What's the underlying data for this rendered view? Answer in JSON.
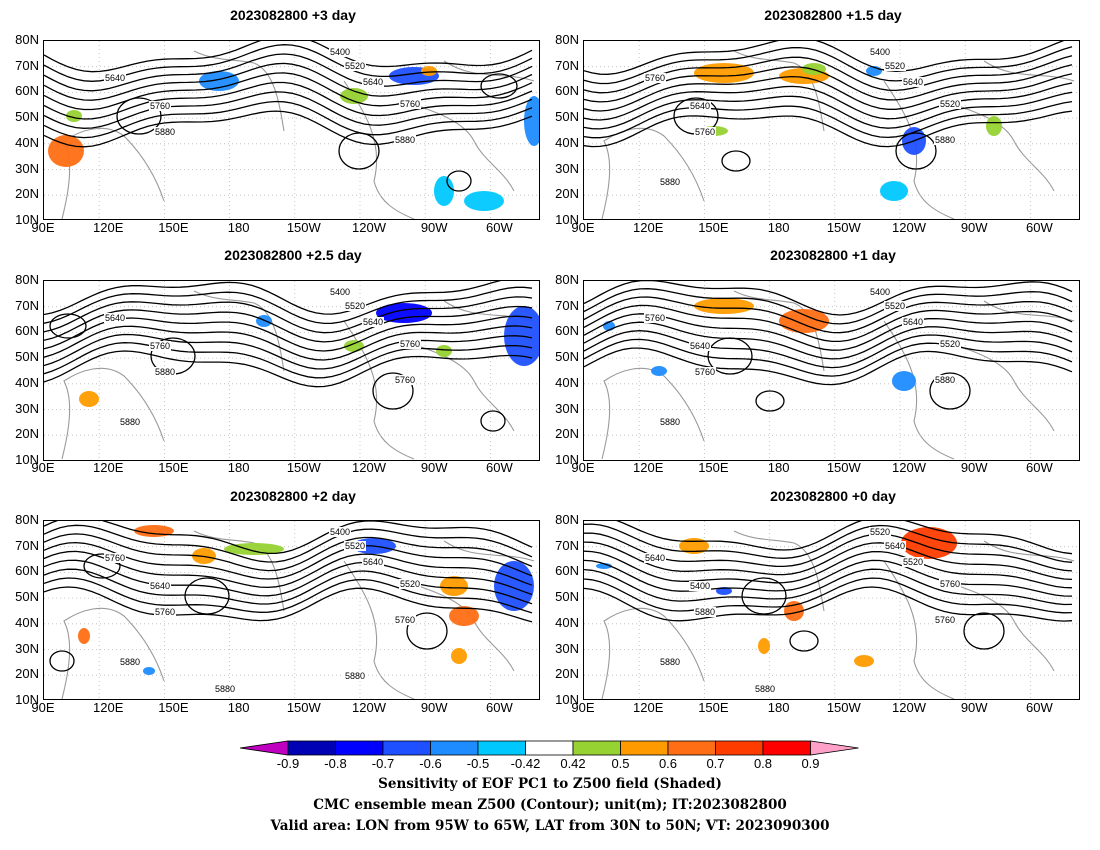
{
  "panels": [
    {
      "title": "2023082800 +3 day",
      "contour_labels": [
        "5400",
        "5520",
        "5640",
        "5640",
        "5760",
        "5760",
        "5880",
        "5880"
      ]
    },
    {
      "title": "2023082800 +1.5 day",
      "contour_labels": [
        "5400",
        "5520",
        "5640",
        "5760",
        "5520",
        "5640",
        "5760",
        "5880",
        "5880"
      ]
    },
    {
      "title": "2023082800 +2.5 day",
      "contour_labels": [
        "5400",
        "5520",
        "5640",
        "5640",
        "5760",
        "5760",
        "5880",
        "5760",
        "5880"
      ]
    },
    {
      "title": "2023082800 +1 day",
      "contour_labels": [
        "5400",
        "5520",
        "5640",
        "5760",
        "5520",
        "5640",
        "5760",
        "5880",
        "5880"
      ]
    },
    {
      "title": "2023082800 +2 day",
      "contour_labels": [
        "5400",
        "5520",
        "5640",
        "5760",
        "5520",
        "5640",
        "5760",
        "5760",
        "5880",
        "5880",
        "5880"
      ]
    },
    {
      "title": "2023082800 +0 day",
      "contour_labels": [
        "5520",
        "5640",
        "5520",
        "5640",
        "5760",
        "5400",
        "5880",
        "5760",
        "5880",
        "5880"
      ]
    }
  ],
  "lat_labels": [
    "80N",
    "70N",
    "60N",
    "50N",
    "40N",
    "30N",
    "20N",
    "10N"
  ],
  "lon_labels": [
    "90E",
    "120E",
    "150E",
    "180",
    "150W",
    "120W",
    "90W",
    "60W"
  ],
  "colorbar": {
    "labels": [
      "-0.9",
      "-0.8",
      "-0.7",
      "-0.6",
      "-0.5",
      "-0.42",
      "0.42",
      "0.5",
      "0.6",
      "0.7",
      "0.8",
      "0.9"
    ],
    "colors": [
      "#c000c0",
      "#0000b4",
      "#0000ff",
      "#1e50ff",
      "#1e8cff",
      "#00c8ff",
      "#ffffff",
      "#96d232",
      "#ff9b00",
      "#ff6e14",
      "#ff3c00",
      "#ff0000",
      "#ffa0c8"
    ]
  },
  "caption": {
    "line1": "Sensitivity of EOF PC1 to Z500 field (Shaded)",
    "line2": "CMC ensemble mean Z500 (Contour); unit(m); IT:2023082800",
    "line3": "Valid area: LON from 95W to 65W, LAT from 30N to 50N; VT: 2023090300"
  }
}
